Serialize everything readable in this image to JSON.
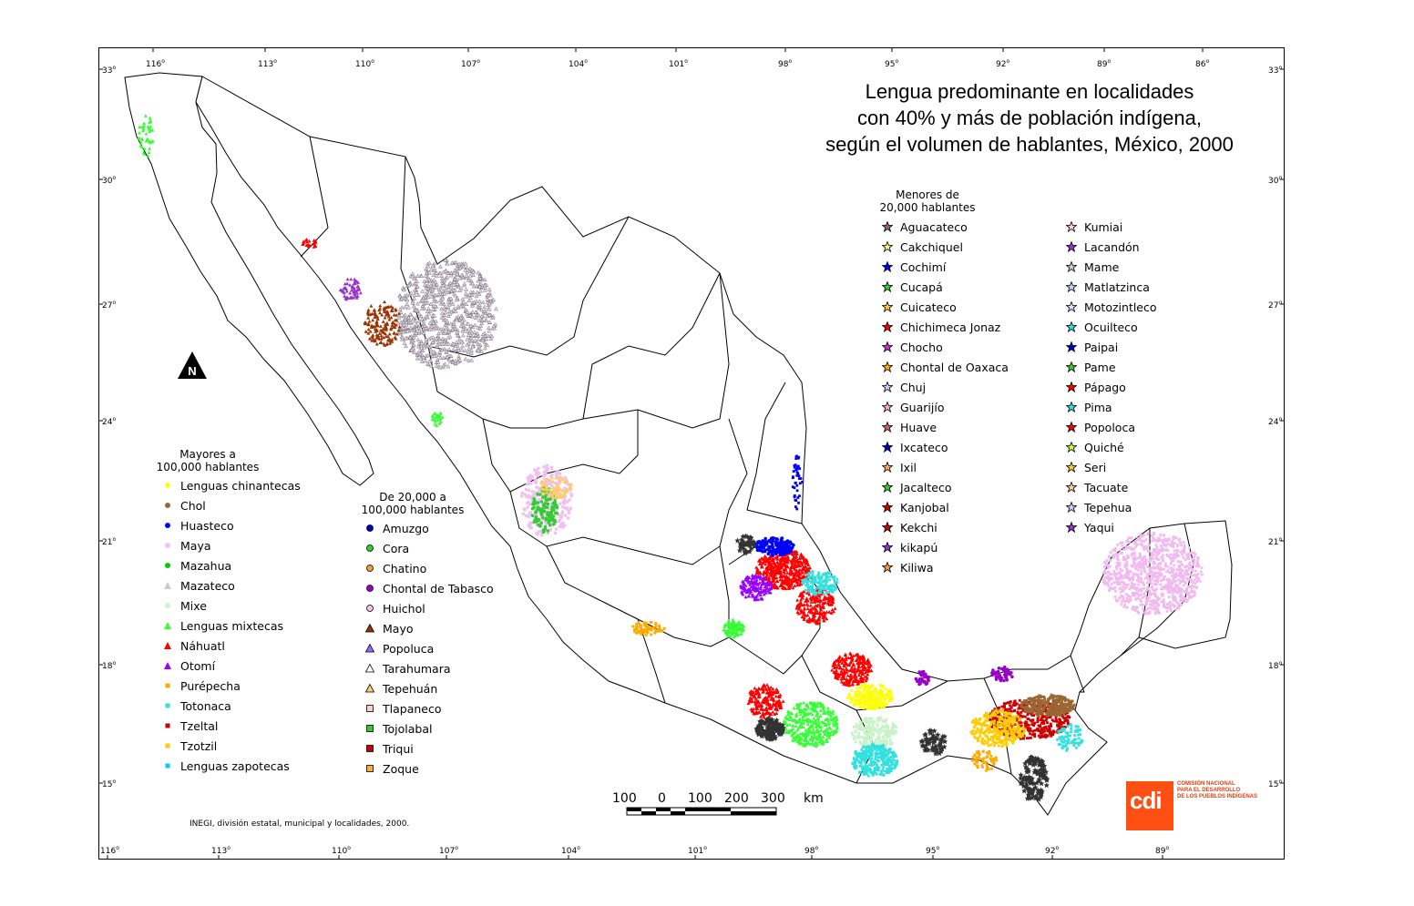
{
  "title": {
    "line1": "Lengua predominante en localidades",
    "line2": "con 40% y más de población indígena,",
    "line3": "según el volumen de hablantes, México, 2000"
  },
  "graticule": {
    "top_longitudes": [
      "116",
      "113",
      "110",
      "107",
      "104",
      "101",
      "98",
      "95",
      "92",
      "89",
      "86"
    ],
    "bottom_longitudes": [
      "116",
      "113",
      "110",
      "107",
      "104",
      "101",
      "98",
      "95",
      "92",
      "89"
    ],
    "latitudes": [
      "33",
      "30",
      "27",
      "24",
      "21",
      "18",
      "15"
    ],
    "degree_symbol": "o"
  },
  "legend_large": {
    "heading1": "Mayores a",
    "heading2": "100,000 hablantes",
    "items": [
      {
        "label": "Lenguas chinantecas",
        "color": "#ffff00",
        "shape": "square"
      },
      {
        "label": "Chol",
        "color": "#9a6633",
        "shape": "circle"
      },
      {
        "label": "Huasteco",
        "color": "#0000ff",
        "shape": "circle"
      },
      {
        "label": "Maya",
        "color": "#f2b8f0",
        "shape": "square"
      },
      {
        "label": "Mazahua",
        "color": "#00cc00",
        "shape": "circle"
      },
      {
        "label": "Mazateco",
        "color": "#cccccc",
        "shape": "triangle"
      },
      {
        "label": "Mixe",
        "color": "#c8f2c8",
        "shape": "square"
      },
      {
        "label": "Lenguas mixtecas",
        "color": "#33ff33",
        "shape": "triangle"
      },
      {
        "label": "Náhuatl",
        "color": "#ff0000",
        "shape": "triangle"
      },
      {
        "label": "Otomí",
        "color": "#9900ff",
        "shape": "triangle"
      },
      {
        "label": "Purépecha",
        "color": "#ffaa00",
        "shape": "square"
      },
      {
        "label": "Totonaca",
        "color": "#33e0e0",
        "shape": "square"
      },
      {
        "label": "Tzeltal",
        "color": "#cc0000",
        "shape": "square"
      },
      {
        "label": "Tzotzil",
        "color": "#ffcc00",
        "shape": "square"
      },
      {
        "label": "Lenguas zapotecas",
        "color": "#00ccff",
        "shape": "square"
      }
    ]
  },
  "legend_medium": {
    "heading1": "De 20,000 a",
    "heading2": "100,000 hablantes",
    "items": [
      {
        "label": "Amuzgo",
        "color": "#0000cc",
        "shape": "circle-outline"
      },
      {
        "label": "Cora",
        "color": "#33cc33",
        "shape": "circle-outline"
      },
      {
        "label": "Chatino",
        "color": "#ff9933",
        "shape": "circle-outline"
      },
      {
        "label": "Chontal de Tabasco",
        "color": "#9900cc",
        "shape": "circle-outline"
      },
      {
        "label": "Huichol",
        "color": "#f0c0f0",
        "shape": "circle-outline"
      },
      {
        "label": "Mayo",
        "color": "#993300",
        "shape": "triangle-outline"
      },
      {
        "label": "Popoluca",
        "color": "#9966ff",
        "shape": "triangle-outline"
      },
      {
        "label": "Tarahumara",
        "color": "#ffffff",
        "shape": "triangle-outline"
      },
      {
        "label": "Tepehuán",
        "color": "#ffcc66",
        "shape": "triangle-outline"
      },
      {
        "label": "Tlapaneco",
        "color": "#ffcccc",
        "shape": "square-outline"
      },
      {
        "label": "Tojolabal",
        "color": "#33cc33",
        "shape": "square-outline"
      },
      {
        "label": "Triqui",
        "color": "#cc0000",
        "shape": "square-outline"
      },
      {
        "label": "Zoque",
        "color": "#ffaa33",
        "shape": "square-outline"
      }
    ]
  },
  "legend_small": {
    "heading1": "Menores de",
    "heading2": "20,000 hablantes",
    "column1": [
      {
        "label": "Aguacateco",
        "color": "#996666"
      },
      {
        "label": "Cakchiquel",
        "color": "#ffee88"
      },
      {
        "label": "Cochimí",
        "color": "#0000ff"
      },
      {
        "label": "Cucapá",
        "color": "#33cc33"
      },
      {
        "label": "Cuicateco",
        "color": "#ffcc33"
      },
      {
        "label": "Chichimeca Jonaz",
        "color": "#ff0000"
      },
      {
        "label": "Chocho",
        "color": "#cc33cc"
      },
      {
        "label": "Chontal de Oaxaca",
        "color": "#ffaa00"
      },
      {
        "label": "Chuj",
        "color": "#ccccff"
      },
      {
        "label": "Guarijío",
        "color": "#ffaacc"
      },
      {
        "label": "Huave",
        "color": "#cc6666"
      },
      {
        "label": "Ixcateco",
        "color": "#0000cc"
      },
      {
        "label": "Ixil",
        "color": "#ffaa55"
      },
      {
        "label": "Jacalteco",
        "color": "#33cc33"
      },
      {
        "label": "Kanjobal",
        "color": "#cc0000"
      },
      {
        "label": "Kekchi",
        "color": "#cc0000"
      },
      {
        "label": "kikapú",
        "color": "#9933cc"
      },
      {
        "label": "Kiliwa",
        "color": "#ff9933"
      }
    ],
    "column2": [
      {
        "label": "Kumiai",
        "color": "#ffcccc"
      },
      {
        "label": "Lacandón",
        "color": "#9933cc"
      },
      {
        "label": "Mame",
        "color": "#cccccc"
      },
      {
        "label": "Matlatzinca",
        "color": "#ccccff"
      },
      {
        "label": "Motozintleco",
        "color": "#ddddff"
      },
      {
        "label": "Ocuilteco",
        "color": "#33e0e0"
      },
      {
        "label": "Paipai",
        "color": "#0000cc"
      },
      {
        "label": "Pame",
        "color": "#33cc33"
      },
      {
        "label": "Pápago",
        "color": "#ff0000"
      },
      {
        "label": "Pima",
        "color": "#33e0e0"
      },
      {
        "label": "Popoloca",
        "color": "#ff0000"
      },
      {
        "label": "Quiché",
        "color": "#ccff33"
      },
      {
        "label": "Seri",
        "color": "#ffcc33"
      },
      {
        "label": "Tacuate",
        "color": "#ffcc99"
      },
      {
        "label": "Tepehua",
        "color": "#ccccff"
      },
      {
        "label": "Yaqui",
        "color": "#9933cc"
      }
    ]
  },
  "scale_bar": {
    "labels": [
      "100",
      "0",
      "100",
      "200",
      "300"
    ],
    "unit": "km"
  },
  "north_label": "N",
  "source": "INEGI, división estatal, municipal y localidades, 2000.",
  "logo": {
    "mark": "cdi",
    "line1": "COMISIÓN NACIONAL",
    "line2": "PARA EL DESARROLLO",
    "line3": "DE LOS PUEBLOS INDÍGENAS"
  }
}
